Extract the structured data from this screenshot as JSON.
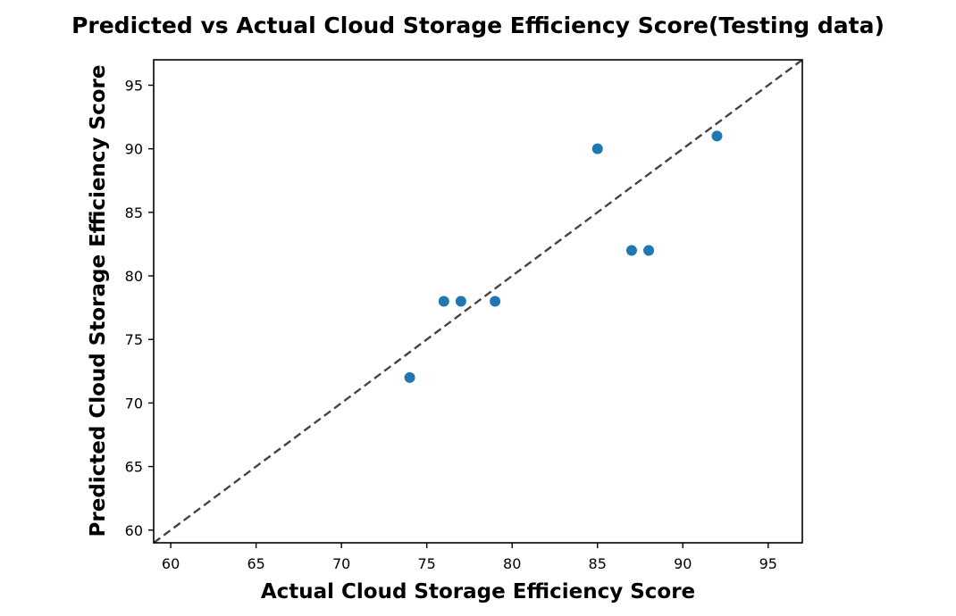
{
  "chart_data": {
    "type": "scatter",
    "title": "Predicted vs Actual Cloud Storage Efficiency Score(Testing data)",
    "xlabel": "Actual Cloud Storage Efficiency Score",
    "ylabel": "Predicted Cloud Storage Efficiency Score",
    "xlim": [
      59,
      97
    ],
    "ylim": [
      59,
      97
    ],
    "xticks": [
      "60",
      "65",
      "70",
      "75",
      "80",
      "85",
      "90",
      "95"
    ],
    "yticks": [
      "60",
      "65",
      "70",
      "75",
      "80",
      "85",
      "90",
      "95"
    ],
    "points": [
      {
        "x": 74,
        "y": 72
      },
      {
        "x": 76,
        "y": 78
      },
      {
        "x": 77,
        "y": 78
      },
      {
        "x": 79,
        "y": 78
      },
      {
        "x": 85,
        "y": 90
      },
      {
        "x": 87,
        "y": 82
      },
      {
        "x": 88,
        "y": 82
      },
      {
        "x": 92,
        "y": 91
      }
    ],
    "reference_line": {
      "style": "dashed",
      "from": [
        59,
        59
      ],
      "to": [
        97,
        97
      ]
    },
    "grid": false,
    "colors": {
      "points": "#1f77b4",
      "reference_line": "#444444",
      "axes": "#000000"
    }
  }
}
